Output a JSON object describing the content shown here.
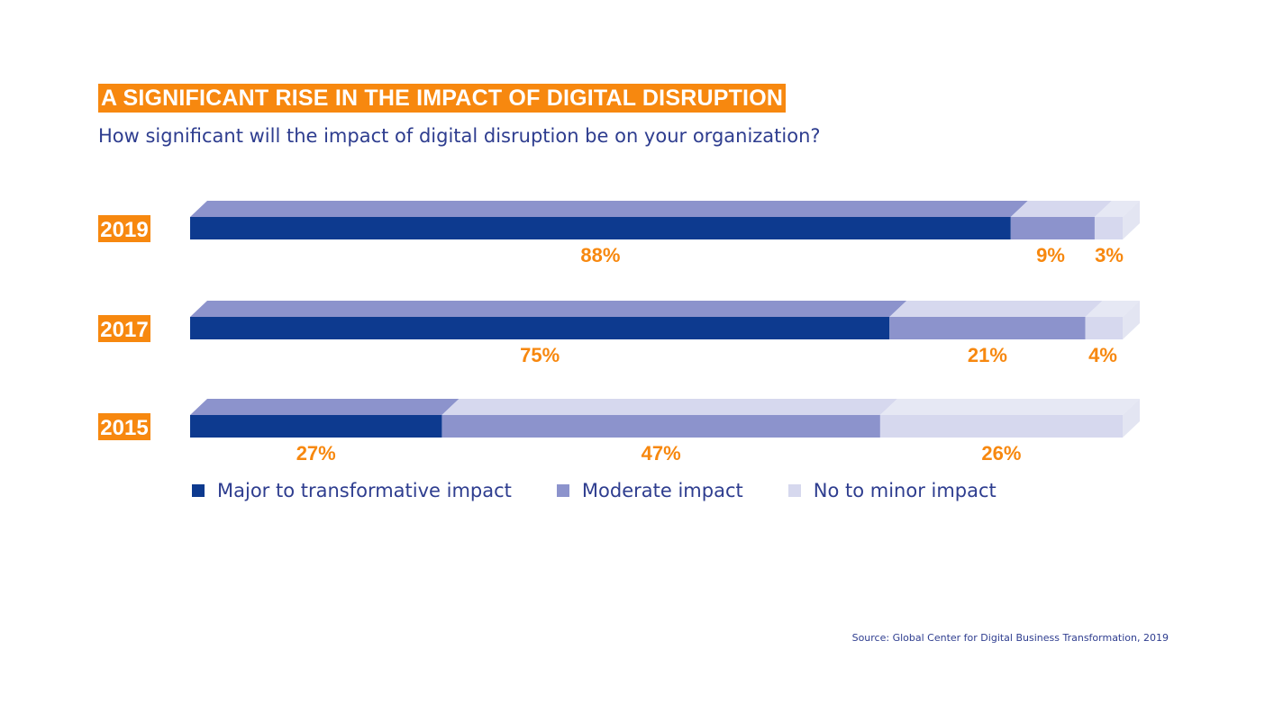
{
  "title": "A SIGNIFICANT RISE IN THE IMPACT OF DIGITAL DISRUPTION",
  "subtitle": "How significant will the impact of digital disruption be on your organization?",
  "source": "Source: Global Center for Digital Business Transformation, 2019",
  "colors": {
    "accent": "#f7880f",
    "text": "#2e3d8f",
    "major": "#0d3a8f",
    "moderate": "#8c93cc",
    "minor": "#d6d8ee"
  },
  "chart_data": {
    "type": "bar",
    "orientation": "horizontal",
    "stacked": true,
    "categories": [
      "2019",
      "2017",
      "2015"
    ],
    "series": [
      {
        "name": "Major to transformative impact",
        "values": [
          88,
          75,
          27
        ],
        "labels": [
          "88%",
          "75%",
          "27%"
        ]
      },
      {
        "name": "Moderate impact",
        "values": [
          9,
          21,
          47
        ],
        "labels": [
          "9%",
          "21%",
          "47%"
        ]
      },
      {
        "name": "No to minor impact",
        "values": [
          3,
          4,
          26
        ],
        "labels": [
          "3%",
          "4%",
          "26%"
        ]
      }
    ],
    "xlim": [
      0,
      100
    ],
    "legend_position": "bottom",
    "grid": false
  }
}
